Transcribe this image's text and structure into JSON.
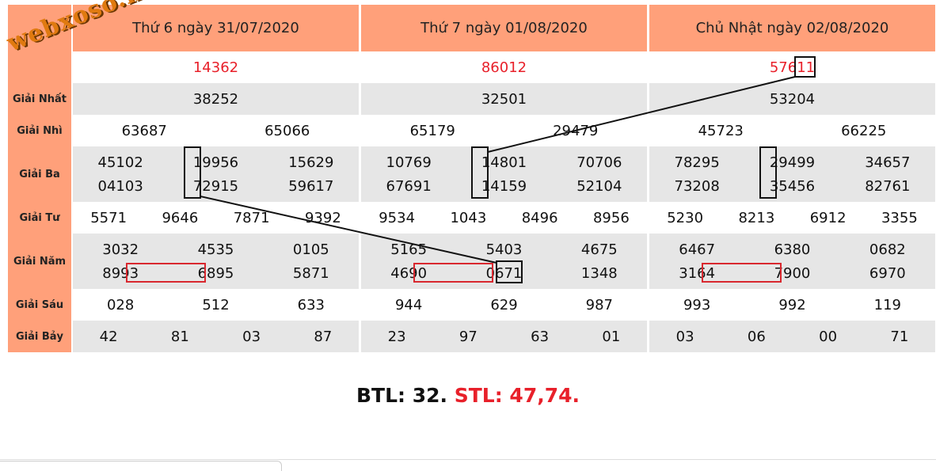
{
  "days": [
    {
      "title": "Thứ 6 ngày 31/07/2020",
      "dac_biet": "14362",
      "nhat": "38252",
      "nhi": [
        "63687",
        "65066"
      ],
      "ba": [
        "45102",
        "19956",
        "15629",
        "04103",
        "72915",
        "59617"
      ],
      "tu": [
        "5571",
        "9646",
        "7871",
        "9392"
      ],
      "nam": [
        "3032",
        "4535",
        "0105",
        "8993",
        "6895",
        "5871"
      ],
      "sau": [
        "028",
        "512",
        "633"
      ],
      "bay": [
        "42",
        "81",
        "03",
        "87"
      ]
    },
    {
      "title": "Thứ 7 ngày 01/08/2020",
      "dac_biet": "86012",
      "nhat": "32501",
      "nhi": [
        "65179",
        "29479"
      ],
      "ba": [
        "10769",
        "14801",
        "70706",
        "67691",
        "14159",
        "52104"
      ],
      "tu": [
        "9534",
        "1043",
        "8496",
        "8956"
      ],
      "nam": [
        "5165",
        "5403",
        "4675",
        "4690",
        "0671",
        "1348"
      ],
      "sau": [
        "944",
        "629",
        "987"
      ],
      "bay": [
        "23",
        "97",
        "63",
        "01"
      ]
    },
    {
      "title": "Chủ Nhật ngày 02/08/2020",
      "dac_biet": "57611",
      "nhat": "53204",
      "nhi": [
        "45723",
        "66225"
      ],
      "ba": [
        "78295",
        "29499",
        "34657",
        "73208",
        "35456",
        "82761"
      ],
      "tu": [
        "5230",
        "8213",
        "6912",
        "3355"
      ],
      "nam": [
        "6467",
        "6380",
        "0682",
        "3164",
        "7900",
        "6970"
      ],
      "sau": [
        "993",
        "992",
        "119"
      ],
      "bay": [
        "03",
        "06",
        "00",
        "71"
      ]
    }
  ],
  "labels": {
    "nhat": "Giải Nhất",
    "nhi": "Giải Nhì",
    "ba": "Giải Ba",
    "tu": "Giải Tư",
    "nam": "Giải Năm",
    "sau": "Giải Sáu",
    "bay": "Giải Bảy"
  },
  "watermark": "webxoso.net",
  "summary": {
    "btl": "BTL: 32.",
    "stl": "STL: 47,74."
  },
  "colors": {
    "header_bg": "#FFA07A",
    "alt_row_bg": "#E6E6E6",
    "special_prize": "#E8202A",
    "highlight_box": "#111111",
    "highlight_red_box": "#D9282F"
  }
}
